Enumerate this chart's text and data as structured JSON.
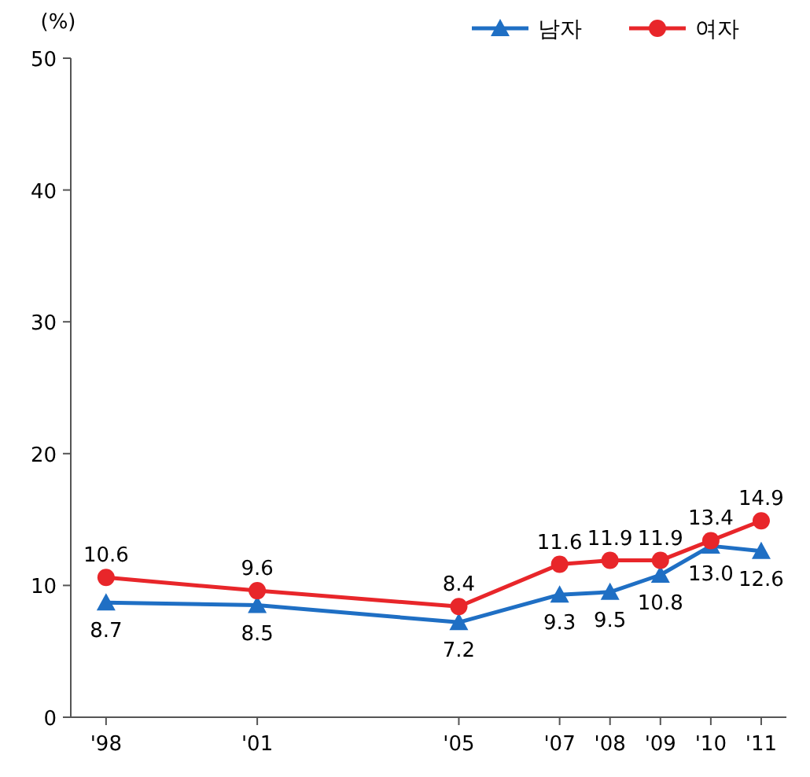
{
  "chart_data": {
    "type": "line",
    "ylabel": "(%)",
    "x": [
      1998,
      2001,
      2005,
      2007,
      2008,
      2009,
      2010,
      2011
    ],
    "xlim": [
      1997.3,
      2011.5
    ],
    "xticks": [
      {
        "value": 1998,
        "label": "'98"
      },
      {
        "value": 2001,
        "label": "'01"
      },
      {
        "value": 2005,
        "label": "'05"
      },
      {
        "value": 2007,
        "label": "'07"
      },
      {
        "value": 2008,
        "label": "'08"
      },
      {
        "value": 2009,
        "label": "'09"
      },
      {
        "value": 2010,
        "label": "'10"
      },
      {
        "value": 2011,
        "label": "'11"
      }
    ],
    "ylim": [
      0,
      50
    ],
    "yticks": [
      0,
      10,
      20,
      30,
      40,
      50
    ],
    "series": [
      {
        "name": "남자",
        "color": "#1f6fc4",
        "marker": "triangle",
        "values": [
          8.7,
          8.5,
          7.2,
          9.3,
          9.5,
          10.8,
          13.0,
          12.6
        ],
        "value_labels": [
          "8.7",
          "8.5",
          "7.2",
          "9.3",
          "9.5",
          "10.8",
          "13.0",
          "12.6"
        ]
      },
      {
        "name": "여자",
        "color": "#e8262a",
        "marker": "circle",
        "values": [
          10.6,
          9.6,
          8.4,
          11.6,
          11.9,
          11.9,
          13.4,
          14.9
        ],
        "value_labels": [
          "10.6",
          "9.6",
          "8.4",
          "11.6",
          "11.9",
          "11.9",
          "13.4",
          "14.9"
        ]
      }
    ],
    "legend": "top right",
    "line_style": "solid"
  }
}
